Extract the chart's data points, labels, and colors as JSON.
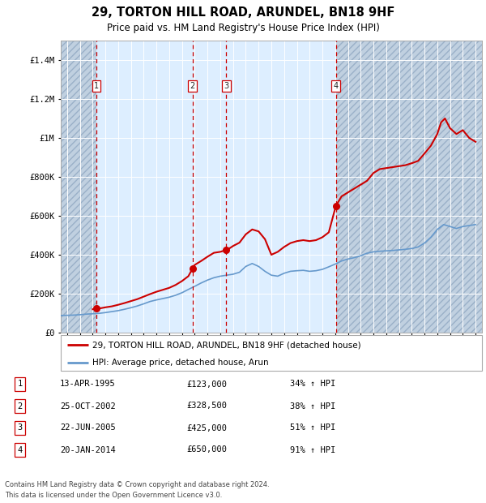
{
  "title": "29, TORTON HILL ROAD, ARUNDEL, BN18 9HF",
  "subtitle": "Price paid vs. HM Land Registry's House Price Index (HPI)",
  "legend_entry1": "29, TORTON HILL ROAD, ARUNDEL, BN18 9HF (detached house)",
  "legend_entry2": "HPI: Average price, detached house, Arun",
  "footer1": "Contains HM Land Registry data © Crown copyright and database right 2024.",
  "footer2": "This data is licensed under the Open Government Licence v3.0.",
  "sale_color": "#cc0000",
  "hpi_color": "#6699cc",
  "background_plot": "#ddeeff",
  "background_hatch": "#c0d0e0",
  "grid_color": "#ffffff",
  "vline_color": "#cc0000",
  "transactions": [
    {
      "num": 1,
      "date": "13-APR-1995",
      "price": 123000,
      "price_str": "£123,000",
      "pct": "34% ↑ HPI",
      "x": 1995.28
    },
    {
      "num": 2,
      "date": "25-OCT-2002",
      "price": 328500,
      "price_str": "£328,500",
      "pct": "38% ↑ HPI",
      "x": 2002.82
    },
    {
      "num": 3,
      "date": "22-JUN-2005",
      "price": 425000,
      "price_str": "£425,000",
      "pct": "51% ↑ HPI",
      "x": 2005.47
    },
    {
      "num": 4,
      "date": "20-JAN-2014",
      "price": 650000,
      "price_str": "£650,000",
      "pct": "91% ↑ HPI",
      "x": 2014.05
    }
  ],
  "ylim": [
    0,
    1500000
  ],
  "xlim_start": 1992.5,
  "xlim_end": 2025.5,
  "hpi_x": [
    1992.5,
    1993.0,
    1993.5,
    1994.0,
    1994.5,
    1995.0,
    1995.5,
    1996.0,
    1996.5,
    1997.0,
    1997.5,
    1998.0,
    1998.5,
    1999.0,
    1999.5,
    2000.0,
    2000.5,
    2001.0,
    2001.5,
    2002.0,
    2002.5,
    2003.0,
    2003.5,
    2004.0,
    2004.5,
    2005.0,
    2005.5,
    2006.0,
    2006.5,
    2007.0,
    2007.5,
    2008.0,
    2008.5,
    2009.0,
    2009.5,
    2010.0,
    2010.5,
    2011.0,
    2011.5,
    2012.0,
    2012.5,
    2013.0,
    2013.5,
    2014.0,
    2014.5,
    2015.0,
    2015.5,
    2016.0,
    2016.5,
    2017.0,
    2017.5,
    2018.0,
    2018.5,
    2019.0,
    2019.5,
    2020.0,
    2020.5,
    2021.0,
    2021.5,
    2022.0,
    2022.5,
    2023.0,
    2023.5,
    2024.0,
    2024.5,
    2025.0
  ],
  "hpi_y": [
    88000,
    89000,
    90000,
    92000,
    95000,
    97000,
    99000,
    103000,
    108000,
    113000,
    120000,
    128000,
    137000,
    148000,
    160000,
    168000,
    175000,
    182000,
    192000,
    205000,
    222000,
    238000,
    255000,
    270000,
    282000,
    290000,
    295000,
    300000,
    310000,
    340000,
    355000,
    340000,
    315000,
    295000,
    290000,
    305000,
    315000,
    318000,
    320000,
    315000,
    318000,
    325000,
    338000,
    352000,
    368000,
    378000,
    385000,
    395000,
    408000,
    415000,
    418000,
    420000,
    422000,
    425000,
    428000,
    432000,
    440000,
    460000,
    490000,
    530000,
    555000,
    545000,
    535000,
    545000,
    550000,
    555000
  ],
  "price_x": [
    1995.0,
    1995.28,
    1995.6,
    1996.0,
    1996.5,
    1997.0,
    1997.5,
    1998.0,
    1998.5,
    1999.0,
    1999.5,
    2000.0,
    2000.5,
    2001.0,
    2001.5,
    2002.0,
    2002.5,
    2002.82,
    2003.0,
    2003.5,
    2004.0,
    2004.5,
    2005.0,
    2005.47,
    2005.7,
    2006.0,
    2006.5,
    2007.0,
    2007.5,
    2008.0,
    2008.5,
    2009.0,
    2009.5,
    2010.0,
    2010.5,
    2011.0,
    2011.5,
    2012.0,
    2012.5,
    2013.0,
    2013.5,
    2014.05,
    2014.5,
    2015.0,
    2015.5,
    2016.0,
    2016.5,
    2017.0,
    2017.5,
    2018.0,
    2018.5,
    2019.0,
    2019.5,
    2020.0,
    2020.5,
    2021.0,
    2021.5,
    2022.0,
    2022.3,
    2022.6,
    2023.0,
    2023.5,
    2024.0,
    2024.5,
    2025.0
  ],
  "price_y": [
    120000,
    123000,
    125000,
    130000,
    135000,
    143000,
    152000,
    162000,
    172000,
    185000,
    198000,
    210000,
    220000,
    230000,
    245000,
    265000,
    290000,
    328500,
    348000,
    368000,
    390000,
    410000,
    415000,
    425000,
    432000,
    445000,
    462000,
    505000,
    530000,
    520000,
    480000,
    400000,
    415000,
    440000,
    460000,
    470000,
    475000,
    470000,
    475000,
    490000,
    515000,
    650000,
    700000,
    720000,
    740000,
    760000,
    780000,
    820000,
    840000,
    845000,
    850000,
    855000,
    860000,
    870000,
    882000,
    920000,
    960000,
    1020000,
    1080000,
    1100000,
    1050000,
    1020000,
    1040000,
    1000000,
    980000
  ]
}
